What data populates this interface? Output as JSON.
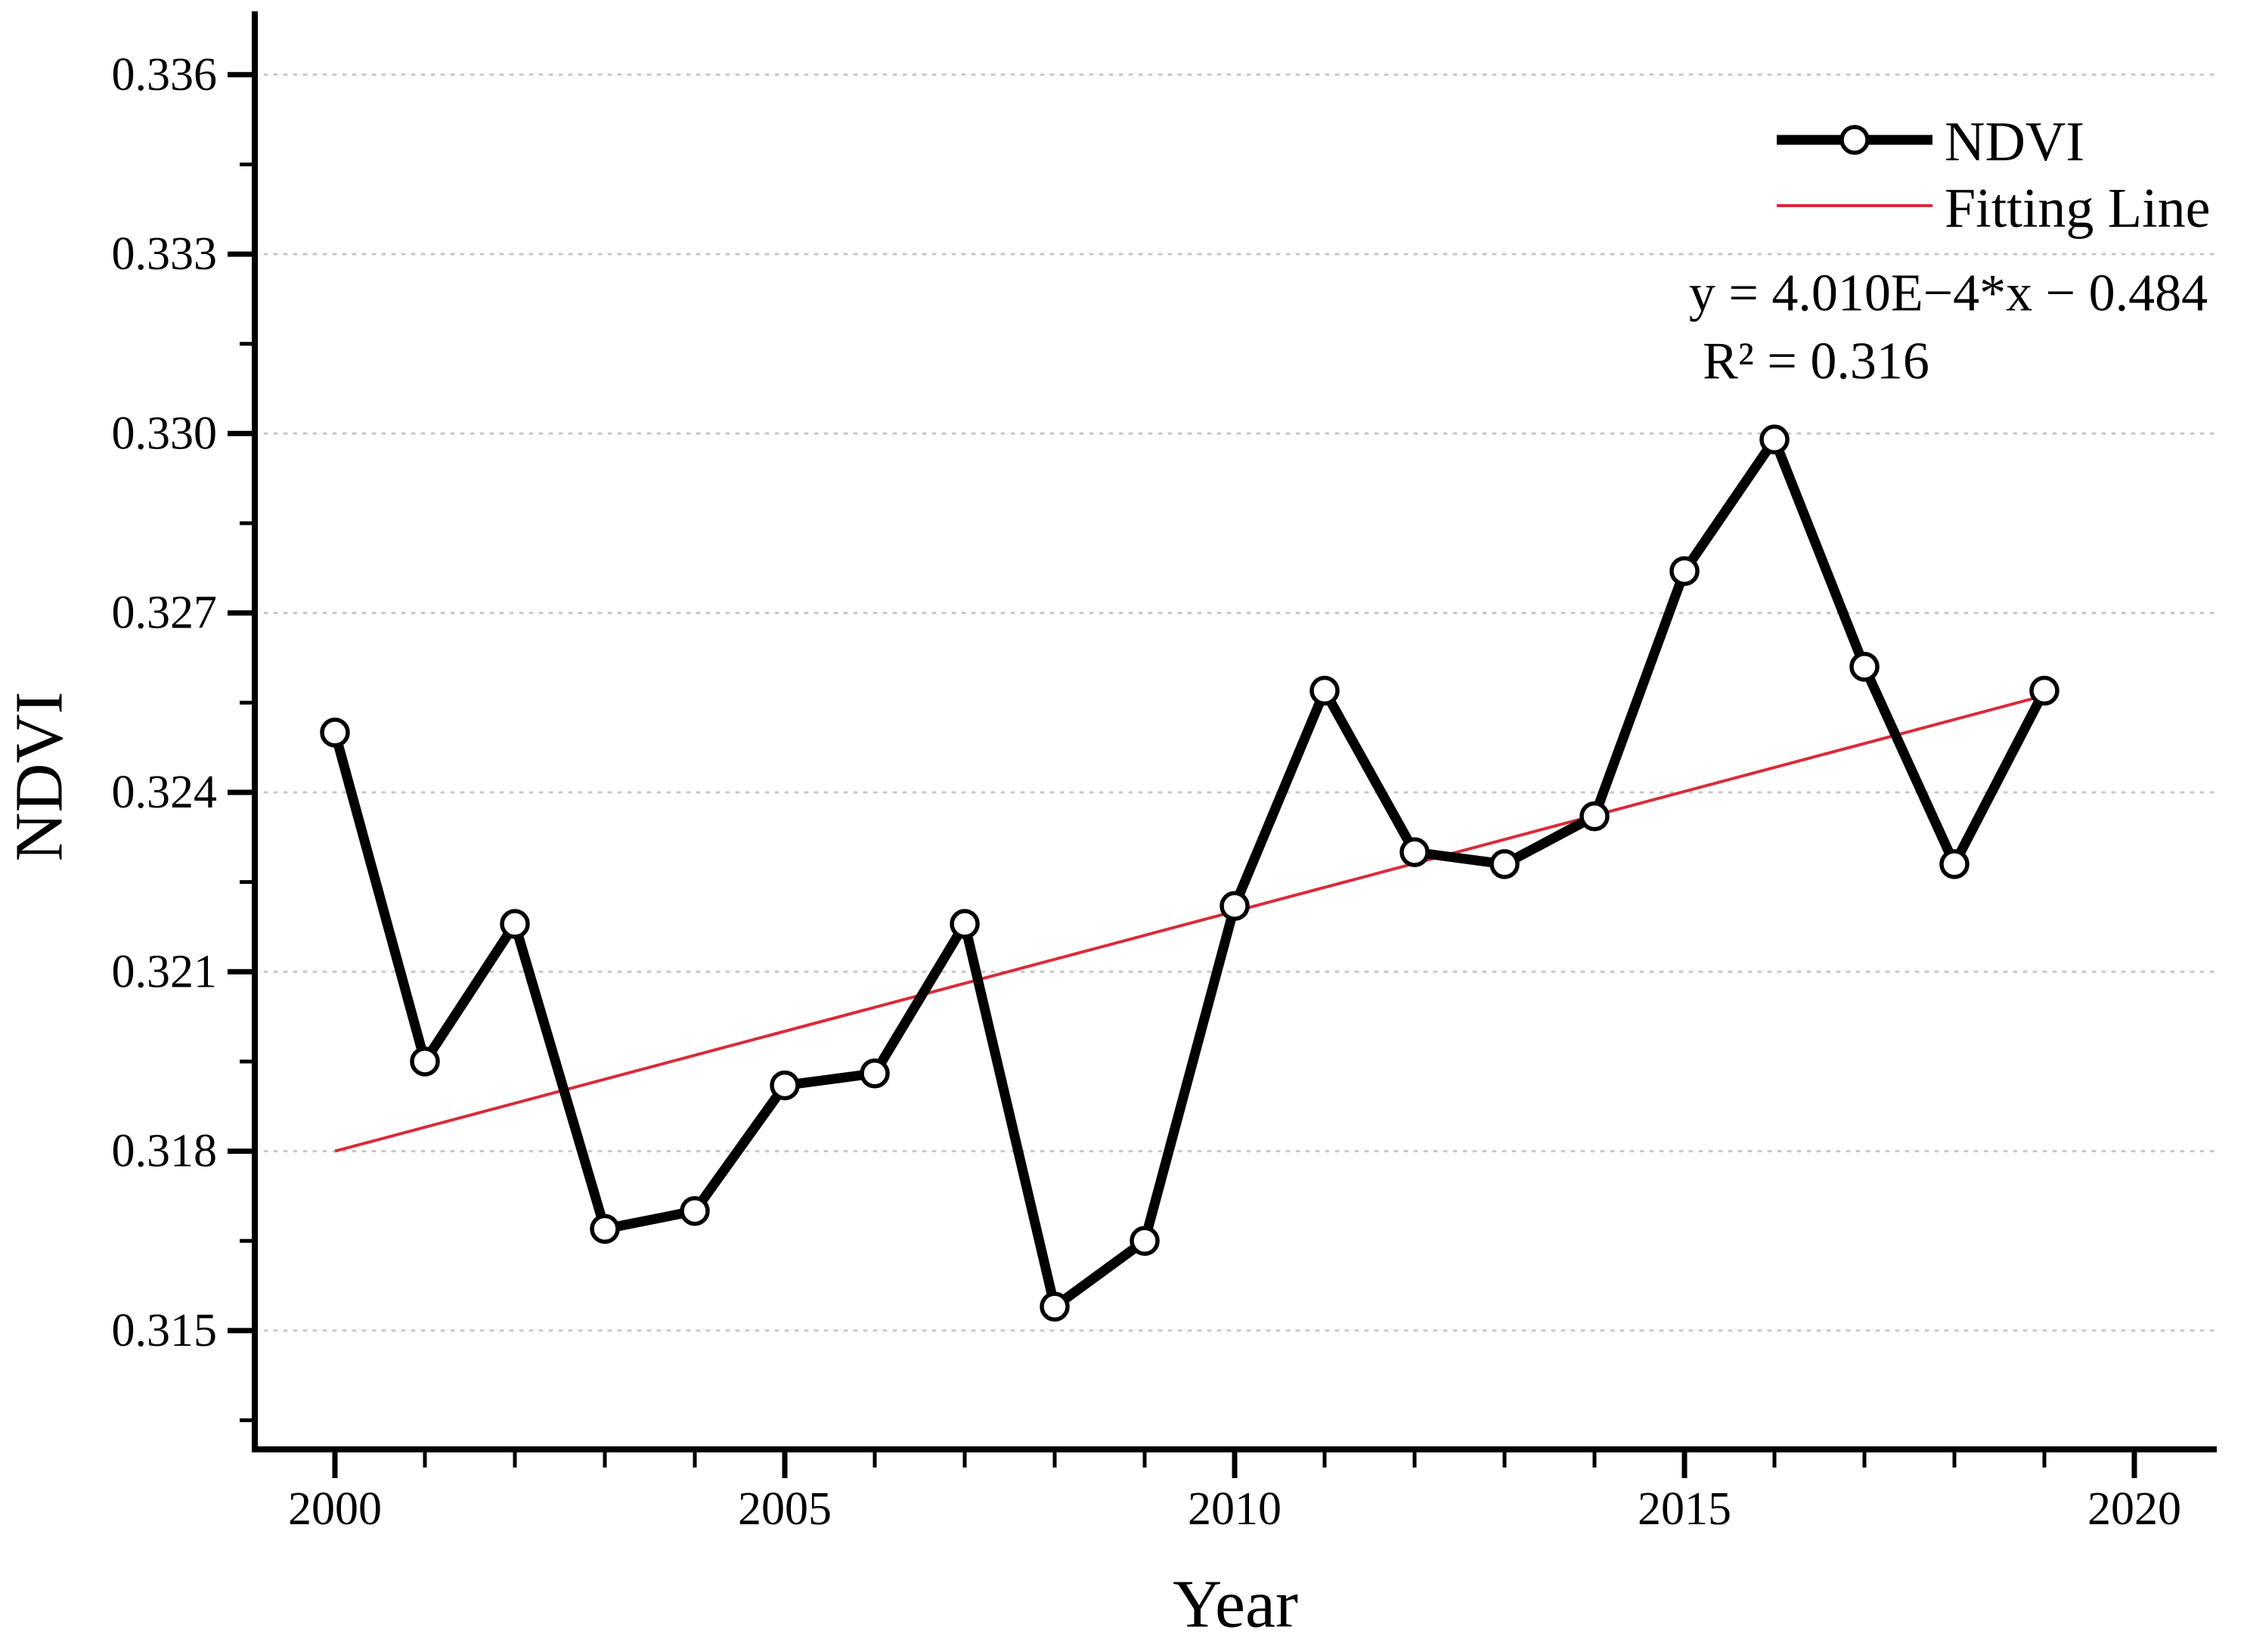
{
  "chart_data": {
    "type": "line",
    "title": "",
    "xlabel": "Year",
    "ylabel": "NDVI",
    "x": [
      2000,
      2001,
      2002,
      2003,
      2004,
      2005,
      2006,
      2007,
      2008,
      2009,
      2010,
      2011,
      2012,
      2013,
      2014,
      2015,
      2016,
      2017,
      2018,
      2019
    ],
    "series": [
      {
        "name": "NDVI",
        "type": "line-with-markers",
        "color": "#000000",
        "marker": "open-circle",
        "values": [
          0.325,
          0.3195,
          0.3218,
          0.3167,
          0.317,
          0.3191,
          0.3193,
          0.3218,
          0.3154,
          0.3165,
          0.3221,
          0.3257,
          0.323,
          0.3228,
          0.3236,
          0.3277,
          0.3299,
          0.3261,
          0.3228,
          0.3257
        ]
      },
      {
        "name": "Fitting Line",
        "type": "fit-line",
        "color": "#d92b3a",
        "slope": 0.000401,
        "intercept": -0.484,
        "x_start": 2000,
        "x_end": 2019
      }
    ],
    "annotations": {
      "equation": "y = 4.010E−4*x − 0.484",
      "r_squared": "R² = 0.316"
    },
    "y_ticks": [
      "0.315",
      "0.318",
      "0.321",
      "0.324",
      "0.327",
      "0.330",
      "0.333",
      "0.336"
    ],
    "y_minor_ticks": [
      0.3135,
      0.3165,
      0.3195,
      0.3225,
      0.3255,
      0.3285,
      0.3315,
      0.3345
    ],
    "x_ticks": [
      "2000",
      "2005",
      "2010",
      "2015",
      "2020"
    ],
    "x_minor_step": 1,
    "xlim": [
      1999.11,
      2020.92
    ],
    "ylim": [
      0.313,
      0.3371
    ],
    "grid": {
      "horizontal": true,
      "style": "dotted",
      "color": "#c6c6c6"
    },
    "legend_position": "top-right"
  }
}
